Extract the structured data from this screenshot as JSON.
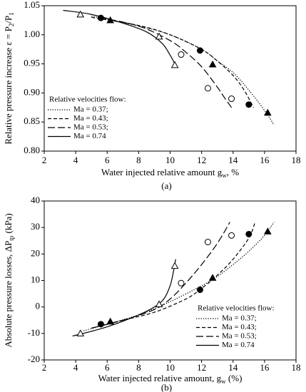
{
  "chart_data": [
    {
      "type": "line",
      "panel_label": "(a)",
      "xlabel": [
        "Water injected relative amount  g",
        "w",
        ", %"
      ],
      "ylabel": [
        "Relative pressure increase ε = P",
        "2",
        "/P",
        "1"
      ],
      "xlim": [
        2,
        18
      ],
      "xticks": [
        2,
        4,
        6,
        8,
        10,
        12,
        14,
        16,
        18
      ],
      "ylim": [
        0.8,
        1.05
      ],
      "yticks": [
        {
          "value": 0.8,
          "label": "0.80"
        },
        0.85,
        {
          "value": 0.9,
          "label": "0.90"
        },
        0.95,
        {
          "value": 1.0,
          "label": "1.00"
        },
        1.05
      ],
      "legend": "lower left",
      "legend_title": "Relative velocities flow:",
      "series": [
        {
          "name": "Ma = 0.37;",
          "color": "#000000",
          "style": "dotted",
          "x": [
            5,
            8,
            10,
            12,
            13,
            14,
            15,
            16,
            16.6
          ],
          "values": [
            1.032,
            1.015,
            1.0,
            0.975,
            0.955,
            0.935,
            0.905,
            0.87,
            0.845
          ],
          "marker": "triangle-filled",
          "points_x": [
            6.2,
            12.7,
            16.2
          ],
          "points_values": [
            1.025,
            0.949,
            0.866
          ]
        },
        {
          "name": "Ma = 0.43;",
          "color": "#000000",
          "style": "dashed",
          "x": [
            5,
            8,
            10,
            12,
            13,
            14,
            14.7,
            15.3
          ],
          "values": [
            1.03,
            1.016,
            1.0,
            0.975,
            0.955,
            0.93,
            0.905,
            0.875
          ],
          "marker": "circle-filled",
          "points_x": [
            5.6,
            11.9,
            15.0
          ],
          "points_values": [
            1.029,
            0.973,
            0.88
          ]
        },
        {
          "name": "Ma = 0.53;",
          "color": "#000000",
          "style": "longdash",
          "x": [
            5.5,
            8,
            10,
            11,
            12,
            13,
            13.5,
            13.9
          ],
          "values": [
            1.03,
            1.015,
            0.99,
            0.97,
            0.945,
            0.91,
            0.89,
            0.875
          ],
          "marker": "circle-open",
          "points_x": [
            10.7,
            12.4,
            13.9
          ],
          "points_values": [
            0.966,
            0.908,
            0.89
          ]
        },
        {
          "name": "Ma = 0.74",
          "color": "#000000",
          "style": "solid",
          "x": [
            3.2,
            5,
            7,
            8.5,
            9.5,
            10,
            10.4
          ],
          "values": [
            1.042,
            1.035,
            1.02,
            1.005,
            0.985,
            0.965,
            0.945
          ],
          "marker": "triangle-open",
          "points_x": [
            4.3,
            9.3,
            10.3
          ],
          "points_values": [
            1.035,
            0.997,
            0.948
          ]
        }
      ]
    },
    {
      "type": "line",
      "panel_label": "(b)",
      "xlabel": [
        "Water injected relative amount, g",
        "w",
        " (%)"
      ],
      "ylabel": [
        "Absolute pressure losses, ΔP",
        "tp",
        " (kPa)"
      ],
      "xlim": [
        2,
        18
      ],
      "xticks": [
        2,
        4,
        6,
        8,
        10,
        12,
        14,
        16,
        18
      ],
      "ylim": [
        -20,
        40
      ],
      "yticks": [
        -20,
        -10,
        0,
        10,
        20,
        30,
        40
      ],
      "legend": "lower right",
      "legend_title": "Relative velocities flow:",
      "series": [
        {
          "name": "Ma = 0.37;",
          "color": "#000000",
          "style": "dotted",
          "x": [
            4.5,
            6,
            8,
            10,
            12,
            13,
            14,
            15,
            16,
            16.6
          ],
          "values": [
            -9,
            -6.5,
            -3,
            2,
            8,
            11.5,
            16,
            21,
            27,
            32
          ],
          "marker": "triangle-filled",
          "points_x": [
            6.2,
            12.7,
            16.2
          ],
          "points_values": [
            -5.5,
            11,
            28.5
          ]
        },
        {
          "name": "Ma = 0.43;",
          "color": "#000000",
          "style": "dashed",
          "x": [
            5,
            7,
            9,
            11,
            12,
            13,
            14,
            15,
            15.4
          ],
          "values": [
            -8,
            -5,
            -2,
            3,
            7,
            12,
            18,
            26,
            32
          ],
          "marker": "circle-filled",
          "points_x": [
            5.6,
            11.9,
            15.0
          ],
          "points_values": [
            -6.5,
            6.5,
            27.5
          ]
        },
        {
          "name": "Ma = 0.53;",
          "color": "#000000",
          "style": "longdash",
          "x": [
            5,
            7,
            9,
            10,
            11,
            12,
            13,
            13.8
          ],
          "values": [
            -8,
            -5,
            -1,
            3,
            9,
            16,
            24,
            32
          ],
          "marker": "circle-open",
          "points_x": [
            10.7,
            12.4,
            13.9
          ],
          "points_values": [
            9,
            24.5,
            27
          ]
        },
        {
          "name": "Ma = 0.74",
          "color": "#000000",
          "style": "solid",
          "x": [
            3.8,
            6,
            8,
            9,
            9.6,
            10,
            10.2,
            10.35
          ],
          "values": [
            -11,
            -7.5,
            -3,
            0,
            3,
            8,
            13,
            18
          ],
          "marker": "triangle-open",
          "points_x": [
            4.3,
            9.3,
            10.3
          ],
          "points_values": [
            -10,
            1,
            15.5
          ]
        }
      ]
    }
  ]
}
